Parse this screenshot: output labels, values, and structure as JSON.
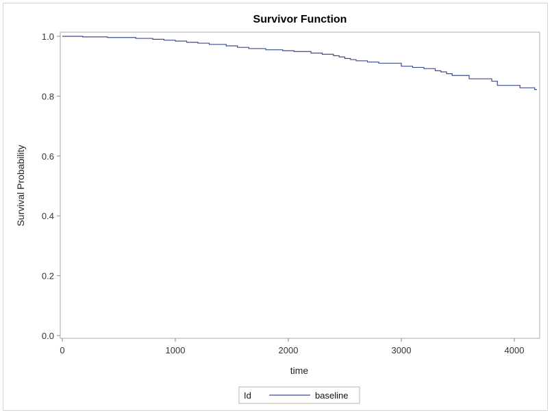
{
  "chart_data": {
    "type": "line",
    "title": "Survivor Function",
    "xlabel": "time",
    "ylabel": "Survival Probability",
    "xlim": [
      0,
      4200
    ],
    "ylim": [
      0,
      1.0
    ],
    "x_ticks": [
      0,
      1000,
      2000,
      3000,
      4000
    ],
    "y_ticks": [
      0.0,
      0.2,
      0.4,
      0.6,
      0.8,
      1.0
    ],
    "x_tick_labels": [
      "0",
      "1000",
      "2000",
      "3000",
      "4000"
    ],
    "y_tick_labels": [
      "0.0",
      "0.2",
      "0.4",
      "0.6",
      "0.8",
      "1.0"
    ],
    "grid": false,
    "step": true,
    "legend": {
      "placement": "bottom-center",
      "title": "Id"
    },
    "series": [
      {
        "name": "baseline",
        "color": "#3b4a8c",
        "x": [
          0,
          180,
          400,
          650,
          800,
          900,
          1000,
          1100,
          1200,
          1300,
          1450,
          1550,
          1650,
          1800,
          1950,
          2050,
          2200,
          2300,
          2400,
          2450,
          2500,
          2550,
          2600,
          2700,
          2800,
          3000,
          3100,
          3200,
          3300,
          3350,
          3400,
          3450,
          3600,
          3800,
          3850,
          4050,
          4180,
          4200
        ],
        "y": [
          1.0,
          0.998,
          0.996,
          0.993,
          0.99,
          0.987,
          0.984,
          0.98,
          0.977,
          0.973,
          0.968,
          0.963,
          0.959,
          0.955,
          0.952,
          0.949,
          0.944,
          0.94,
          0.935,
          0.931,
          0.926,
          0.922,
          0.918,
          0.914,
          0.91,
          0.9,
          0.896,
          0.892,
          0.885,
          0.881,
          0.875,
          0.869,
          0.858,
          0.85,
          0.836,
          0.828,
          0.822,
          0.822
        ]
      }
    ]
  }
}
